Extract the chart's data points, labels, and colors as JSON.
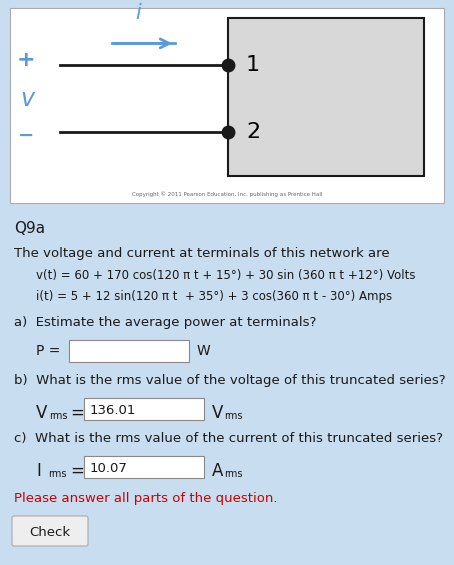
{
  "background_color": "#c8ddef",
  "panel_color": "#ffffff",
  "panel_border": "#aaaaaa",
  "circuit_box_color": "#d8d8d8",
  "circuit_box_border": "#1a1a1a",
  "circuit_line_color": "#1a1a1a",
  "circuit_arrow_color": "#5b9bd5",
  "circuit_label_i_color": "#5b9bd5",
  "circuit_label_v_color": "#5b9bd5",
  "circuit_plus_color": "#5b9bd5",
  "circuit_minus_color": "#5b9bd5",
  "dot_color": "#1a1a1a",
  "copyright_text": "Copyright © 2011 Pearson Education, Inc. publishing as Prentice Hall",
  "question_label": "Q9a",
  "intro_text": "The voltage and current at terminals of this network are",
  "v_eq": "v(t) = 60 + 170 cos(120 π t + 15°) + 30 sin (360 π t +12°) Volts",
  "i_eq": "i(t) = 5 + 12 sin(120 π t  + 35°) + 3 cos(360 π t - 30°) Amps",
  "part_a_label": "a)",
  "part_a_text": "Estimate the average power at terminals?",
  "part_a_var": "P =",
  "part_a_unit": "W",
  "part_b_label": "b)",
  "part_b_text": "What is the rms value of the voltage of this truncated series?",
  "part_b_var": "V",
  "part_b_subscript": "rms",
  "part_b_value": "136.01",
  "part_b_unit": "V",
  "part_b_unit_subscript": "rms",
  "part_c_label": "c)",
  "part_c_text": "What is the rms value of the current of this truncated series?",
  "part_c_var": "I",
  "part_c_subscript": "rms",
  "part_c_value": "10.07",
  "part_c_unit": "A",
  "part_c_unit_subscript": "rms",
  "warning_text": "Please answer all parts of the question.",
  "warning_color": "#cc0000",
  "button_text": "Check",
  "button_color": "#eeeeee",
  "button_border": "#aaaaaa",
  "text_color": "#1a1a1a",
  "input_box_color": "#ffffff",
  "input_box_border": "#888888",
  "fig_width": 4.54,
  "fig_height": 5.65,
  "dpi": 100
}
